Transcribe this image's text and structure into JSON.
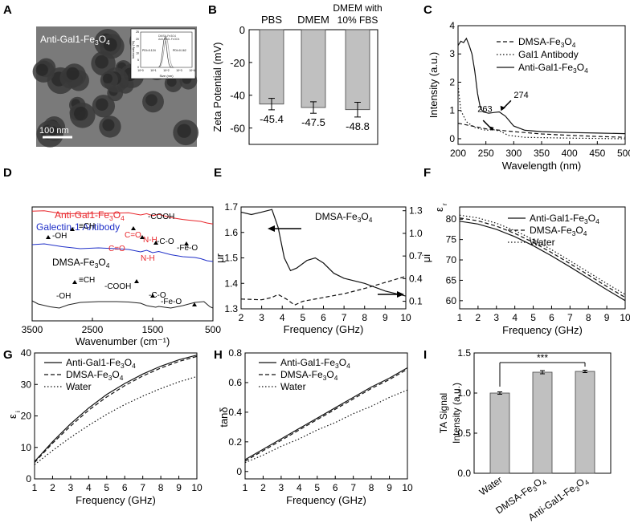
{
  "chart_data": [
    {
      "panel": "A",
      "type": "image",
      "label": "Anti-Gal1-Fe3O4",
      "scale_bar": "100 nm",
      "inset": {
        "type": "line",
        "ylabel": "Intensity (%)",
        "xlabel": "Size (nm)",
        "legend": [
          "DMSA-Fe3O4",
          "Anti-Gal1-Fe3O4"
        ],
        "annotations": [
          "PDI=0.124",
          "PDI=0.162"
        ],
        "xticks": [
          "10^0",
          "10^1",
          "10^2",
          "10^3",
          "10^4"
        ],
        "yticks": [
          "0",
          "5",
          "10",
          "15",
          "20",
          "25"
        ]
      }
    },
    {
      "panel": "B",
      "type": "bar",
      "categories": [
        "PBS",
        "DMEM",
        "DMEM with 10% FBS"
      ],
      "values": [
        -45.4,
        -47.5,
        -48.8
      ],
      "errors": [
        3.5,
        3.5,
        4.5
      ],
      "value_labels": [
        "-45.4",
        "-47.5",
        "-48.8"
      ],
      "ylabel": "Zeta Potential (mV)",
      "ylim": [
        -70,
        0
      ],
      "yticks": [
        0,
        -20,
        -40,
        -60
      ]
    },
    {
      "panel": "C",
      "type": "line",
      "xlabel": "Wavelength (nm)",
      "ylabel": "Intensity (a.u.)",
      "xlim": [
        200,
        500
      ],
      "ylim": [
        -0.2,
        4
      ],
      "xticks": [
        200,
        250,
        300,
        350,
        400,
        450,
        500
      ],
      "yticks": [
        0,
        1,
        2,
        3,
        4
      ],
      "legend": [
        "DMSA-Fe3O4",
        "Gal1 Antibody",
        "Anti-Gal1-Fe3O4"
      ],
      "annotations": [
        "263",
        "274"
      ],
      "series": [
        {
          "name": "DMSA-Fe3O4",
          "style": "dashed",
          "x": [
            200,
            250,
            300,
            350,
            400,
            450,
            500
          ],
          "y": [
            0.55,
            0.35,
            0.25,
            0.17,
            0.12,
            0.08,
            0.05
          ]
        },
        {
          "name": "Gal1 Antibody",
          "style": "dotted",
          "x": [
            200,
            205,
            215,
            230,
            250,
            263,
            275,
            290,
            320,
            400,
            500
          ],
          "y": [
            1.9,
            1.0,
            0.6,
            0.4,
            0.3,
            0.32,
            0.27,
            0.12,
            0.05,
            0.02,
            0.0
          ]
        },
        {
          "name": "Anti-Gal1-Fe3O4",
          "style": "solid",
          "x": [
            200,
            205,
            210,
            215,
            220,
            225,
            230,
            235,
            240,
            245,
            255,
            265,
            274,
            285,
            300,
            320,
            350,
            400,
            450,
            500
          ],
          "y": [
            3.3,
            3.45,
            3.4,
            3.55,
            3.3,
            3.0,
            2.4,
            1.6,
            1.1,
            0.95,
            0.9,
            0.93,
            0.95,
            0.8,
            0.45,
            0.3,
            0.25,
            0.22,
            0.2,
            0.18
          ]
        }
      ]
    },
    {
      "panel": "D",
      "type": "line",
      "xlabel": "Wavenumber (cm-1)",
      "xlim": [
        3500,
        500
      ],
      "xticks": [
        3500,
        2500,
        1500,
        500
      ],
      "legend": [
        "Anti-Gal1-Fe3O4",
        "Galectin-1 Antibody",
        "DMSA-Fe3O4"
      ],
      "annotations_top": [
        "-OH",
        "≡CH",
        "-COOH",
        "C=O",
        "N-H",
        "-C-O"
      ],
      "annotations_mid": [
        "C=O",
        "N-H",
        "-Fe-O"
      ],
      "annotations_bottom": [
        "-OH",
        "≡CH",
        "-COOH",
        "-C-O",
        "-Fe-O"
      ],
      "series": [
        {
          "name": "Anti-Gal1-Fe3O4",
          "color": "#e8262b",
          "x": [
            3500,
            3300,
            3000,
            2700,
            2400,
            2100,
            1900,
            1700,
            1600,
            1500,
            1400,
            1200,
            1000,
            800,
            700,
            600,
            500
          ],
          "y": [
            0.92,
            0.93,
            0.84,
            0.84,
            0.85,
            0.86,
            0.87,
            0.8,
            0.84,
            0.78,
            0.82,
            0.72,
            0.66,
            0.62,
            0.6,
            0.55,
            0.52
          ]
        },
        {
          "name": "Galectin-1 Antibody",
          "color": "#2030c8",
          "x": [
            3500,
            3300,
            3000,
            2700,
            2400,
            2100,
            1900,
            1700,
            1600,
            1500,
            1400,
            1200,
            1000,
            800,
            700,
            600,
            500
          ],
          "y": [
            0.7,
            0.72,
            0.65,
            0.6,
            0.62,
            0.6,
            0.58,
            0.52,
            0.56,
            0.5,
            0.53,
            0.45,
            0.4,
            0.38,
            0.35,
            0.3,
            0.28
          ]
        },
        {
          "name": "DMSA-Fe3O4",
          "color": "#222222",
          "x": [
            3500,
            3400,
            3200,
            3050,
            2900,
            2700,
            2400,
            2100,
            1900,
            1700,
            1600,
            1450,
            1400,
            1200,
            1000,
            800,
            650,
            550,
            500
          ],
          "y": [
            0.3,
            0.22,
            0.15,
            0.12,
            0.2,
            0.26,
            0.28,
            0.28,
            0.27,
            0.24,
            0.18,
            0.14,
            0.16,
            0.12,
            0.18,
            0.26,
            0.28,
            0.15,
            0.12
          ]
        }
      ]
    },
    {
      "panel": "E",
      "type": "line",
      "xlabel": "Frequency (GHz)",
      "ylabel_left": "μr",
      "ylabel_right": "μi",
      "xlim": [
        2,
        10
      ],
      "ylim_left": [
        1.3,
        1.7
      ],
      "ylim_right": [
        0.0,
        1.35
      ],
      "xticks": [
        2,
        3,
        4,
        5,
        6,
        7,
        8,
        9,
        10
      ],
      "yticks_left": [
        1.3,
        1.4,
        1.5,
        1.6,
        1.7
      ],
      "yticks_right": [
        0.1,
        0.4,
        0.7,
        1.0,
        1.3
      ],
      "title": "DMSA-Fe3O4",
      "series": [
        {
          "name": "μr",
          "axis": "left",
          "style": "solid",
          "x": [
            2,
            2.5,
            3,
            3.5,
            3.8,
            4.1,
            4.4,
            4.7,
            5.2,
            5.6,
            6,
            6.5,
            7,
            8,
            9,
            10
          ],
          "y": [
            1.68,
            1.67,
            1.68,
            1.69,
            1.62,
            1.5,
            1.45,
            1.46,
            1.49,
            1.5,
            1.48,
            1.44,
            1.42,
            1.4,
            1.37,
            1.35
          ]
        },
        {
          "name": "μi",
          "axis": "right",
          "style": "dashed",
          "x": [
            2,
            3,
            3.5,
            3.8,
            4.2,
            4.6,
            5,
            6,
            7,
            8,
            9,
            10
          ],
          "y": [
            0.13,
            0.12,
            0.15,
            0.19,
            0.13,
            0.05,
            0.1,
            0.15,
            0.2,
            0.27,
            0.35,
            0.43
          ]
        }
      ]
    },
    {
      "panel": "F",
      "type": "line",
      "xlabel": "Frequency (GHz)",
      "ylabel": "εr",
      "xlim": [
        1,
        10
      ],
      "ylim": [
        58,
        83
      ],
      "xticks": [
        1,
        2,
        3,
        4,
        5,
        6,
        7,
        8,
        9,
        10
      ],
      "yticks": [
        60,
        65,
        70,
        75,
        80
      ],
      "legend": [
        "Anti-Gal1-Fe3O4",
        "DMSA-Fe3O4",
        "Water"
      ],
      "series": [
        {
          "name": "Anti-Gal1-Fe3O4",
          "style": "solid",
          "x": [
            1,
            2,
            3,
            4,
            5,
            6,
            7,
            8,
            9,
            10
          ],
          "y": [
            79.5,
            78.8,
            77.5,
            75.7,
            73.5,
            71.0,
            68.3,
            65.5,
            62.7,
            60.0
          ]
        },
        {
          "name": "DMSA-Fe3O4",
          "style": "dashed",
          "x": [
            1,
            2,
            3,
            4,
            5,
            6,
            7,
            8,
            9,
            10
          ],
          "y": [
            80.3,
            79.6,
            78.3,
            76.5,
            74.3,
            71.8,
            69.1,
            66.3,
            63.5,
            60.8
          ]
        },
        {
          "name": "Water",
          "style": "dotted",
          "x": [
            1,
            2,
            3,
            4,
            5,
            6,
            7,
            8,
            9,
            10
          ],
          "y": [
            81.0,
            80.3,
            79.0,
            77.2,
            75.0,
            72.5,
            69.8,
            67.0,
            64.2,
            61.5
          ]
        }
      ]
    },
    {
      "panel": "G",
      "type": "line",
      "xlabel": "Frequency (GHz)",
      "ylabel": "εi",
      "xlim": [
        1,
        10
      ],
      "ylim": [
        0,
        40
      ],
      "xticks": [
        1,
        2,
        3,
        4,
        5,
        6,
        7,
        8,
        9,
        10
      ],
      "yticks": [
        0,
        10,
        20,
        30,
        40
      ],
      "legend": [
        "Anti-Gal1-Fe3O4",
        "DMSA-Fe3O4",
        "Water"
      ],
      "series": [
        {
          "name": "Anti-Gal1-Fe3O4",
          "style": "solid",
          "x": [
            1,
            2,
            3,
            4,
            5,
            6,
            7,
            8,
            9,
            10
          ],
          "y": [
            5.5,
            11.8,
            17.5,
            22.5,
            26.8,
            30.3,
            33.3,
            35.8,
            37.8,
            39.3
          ]
        },
        {
          "name": "DMSA-Fe3O4",
          "style": "dashed",
          "x": [
            1,
            2,
            3,
            4,
            5,
            6,
            7,
            8,
            9,
            10
          ],
          "y": [
            5.2,
            11.3,
            16.8,
            21.8,
            26.0,
            29.6,
            32.7,
            35.2,
            37.3,
            38.9
          ]
        },
        {
          "name": "Water",
          "style": "dotted",
          "x": [
            1,
            2,
            3,
            4,
            5,
            6,
            7,
            8,
            9,
            10
          ],
          "y": [
            4.5,
            9.0,
            13.2,
            17.0,
            20.5,
            23.6,
            26.3,
            28.7,
            30.8,
            32.5
          ]
        }
      ]
    },
    {
      "panel": "H",
      "type": "line",
      "xlabel": "Frequency (GHz)",
      "ylabel": "tanδ",
      "xlim": [
        1,
        10
      ],
      "ylim": [
        -0.05,
        0.8
      ],
      "xticks": [
        1,
        2,
        3,
        4,
        5,
        6,
        7,
        8,
        9,
        10
      ],
      "yticks": [
        0.0,
        0.2,
        0.4,
        0.6,
        0.8
      ],
      "legend": [
        "Anti-Gal1-Fe3O4",
        "DMSA-Fe3O4",
        "Water"
      ],
      "series": [
        {
          "name": "Anti-Gal1-Fe3O4",
          "style": "solid",
          "x": [
            1,
            2,
            3,
            4,
            5,
            6,
            7,
            8,
            9,
            10
          ],
          "y": [
            0.08,
            0.15,
            0.22,
            0.29,
            0.36,
            0.43,
            0.5,
            0.57,
            0.63,
            0.7
          ]
        },
        {
          "name": "DMSA-Fe3O4",
          "style": "dashed",
          "x": [
            1,
            2,
            3,
            4,
            5,
            6,
            7,
            8,
            9,
            10
          ],
          "y": [
            0.07,
            0.14,
            0.21,
            0.28,
            0.35,
            0.42,
            0.49,
            0.56,
            0.62,
            0.69
          ]
        },
        {
          "name": "Water",
          "style": "dotted",
          "x": [
            1,
            2,
            3,
            4,
            5,
            6,
            7,
            8,
            9,
            10
          ],
          "y": [
            0.06,
            0.11,
            0.17,
            0.22,
            0.28,
            0.33,
            0.39,
            0.44,
            0.5,
            0.55
          ]
        }
      ]
    },
    {
      "panel": "I",
      "type": "bar",
      "categories": [
        "Water",
        "DMSA-Fe3O4",
        "Anti-Gal1-Fe3O4"
      ],
      "values": [
        1.0,
        1.26,
        1.27
      ],
      "errors": [
        0.015,
        0.02,
        0.015
      ],
      "ylabel": "TA Signal Intensity (a.u.)",
      "ylim": [
        0,
        1.5
      ],
      "yticks": [
        "0.0",
        "0.5",
        "1.0",
        "1.5"
      ],
      "significance": "***"
    }
  ]
}
